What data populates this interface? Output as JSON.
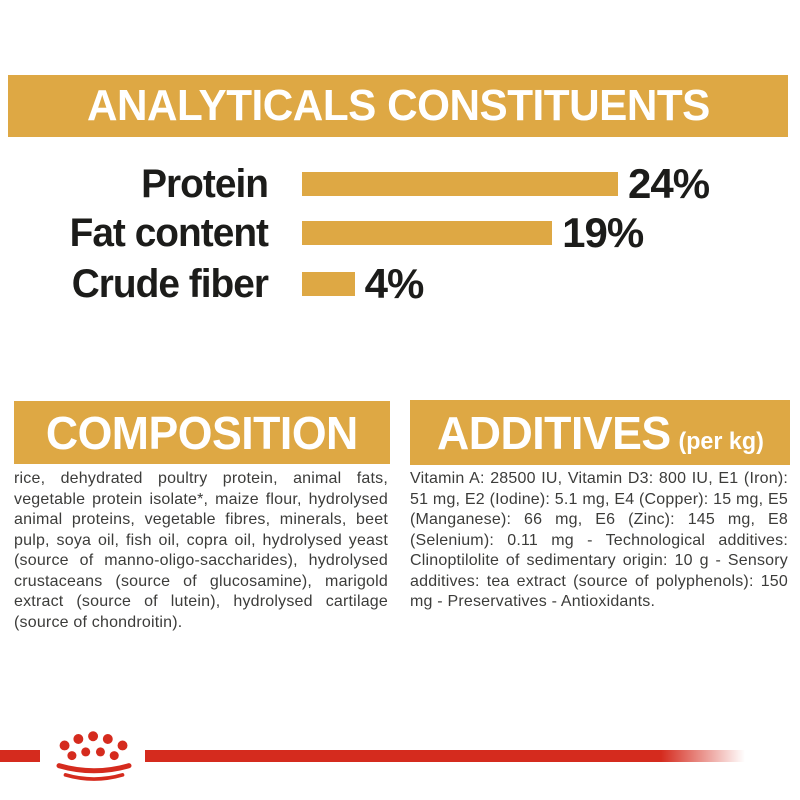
{
  "colors": {
    "gold": "#DEA844",
    "red": "#D52B1E",
    "heading_text": "#FFFFFF",
    "label_text": "#1C1C1A",
    "body_text": "#3C3C3A",
    "background": "#FFFFFF"
  },
  "analyticals": {
    "title": "ANALYTICALS CONSTITUENTS"
  },
  "chart_data": {
    "type": "bar",
    "orientation": "horizontal",
    "title": "ANALYTICALS CONSTITUENTS",
    "categories": [
      "Protein",
      "Fat content",
      "Crude fiber"
    ],
    "values": [
      24,
      19,
      4
    ],
    "value_labels": [
      "24%",
      "19%",
      "4%"
    ],
    "unit": "%",
    "xlim": [
      0,
      24
    ],
    "bar_color": "#DEA844",
    "grid": false,
    "legend": false
  },
  "composition": {
    "title": "COMPOSITION",
    "body": "rice, dehydrated poultry protein, animal fats, vegetable protein isolate*, maize flour, hydrolysed animal proteins, vegetable fibres, minerals, beet pulp, soya oil, fish oil, copra oil, hydrolysed yeast (source of manno-oligo-saccharides), hydrolysed crustaceans (source of glucosamine), marigold extract (source of lutein), hydrolysed cartilage (source of chondroitin)."
  },
  "additives": {
    "title": "ADDITIVES",
    "title_suffix": "(per kg)",
    "body": "Vitamin A: 28500 IU, Vitamin D3: 800 IU, E1 (Iron): 51 mg, E2 (Iodine): 5.1 mg, E4 (Copper): 15 mg, E5 (Manganese): 66 mg, E6 (Zinc): 145 mg, E8 (Selenium): 0.11 mg - Technological additives: Clinoptilolite of sedimentary origin: 10 g - Sensory additives: tea extract (source of polyphenols): 150 mg - Preservatives - Antioxidants."
  },
  "footer": {
    "logo": "royal-canin-crown",
    "logo_color": "#D52B1E"
  }
}
